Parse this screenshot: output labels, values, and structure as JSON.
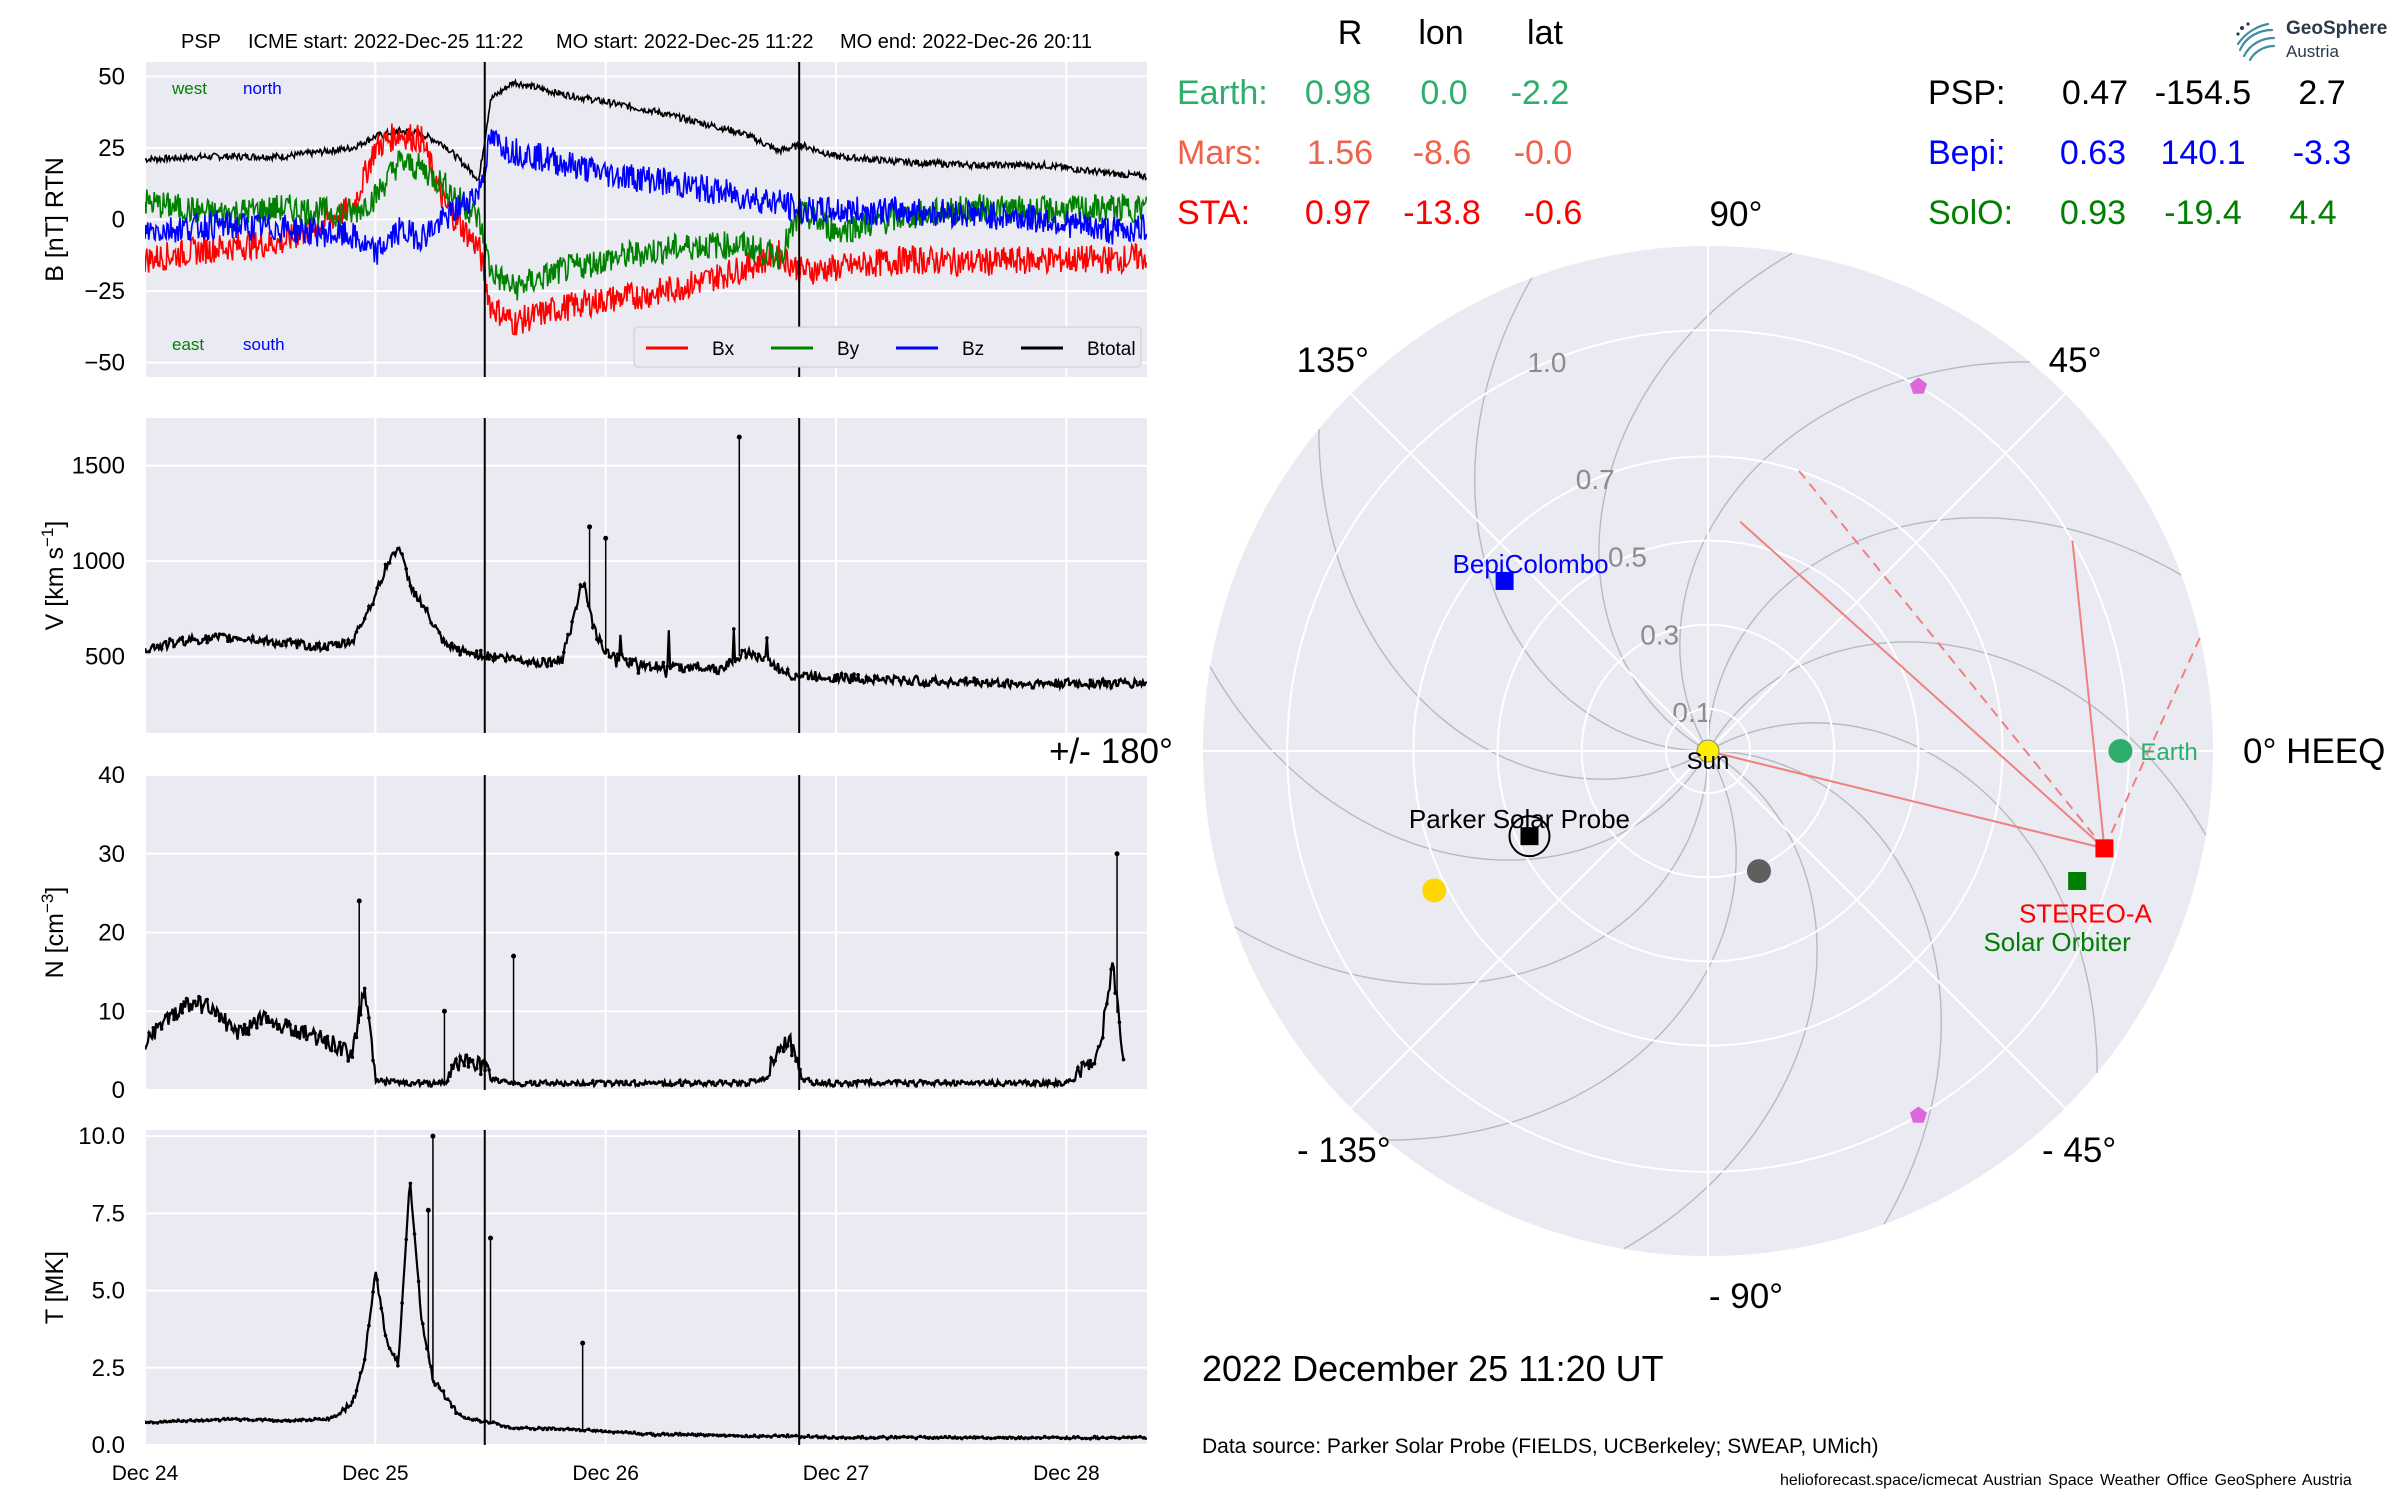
{
  "header": {
    "mission": "PSP",
    "icme_start": "ICME start: 2022-Dec-25 11:22",
    "mo_start": "MO start: 2022-Dec-25 11:22",
    "mo_end": "MO end: 2022-Dec-26 20:11"
  },
  "positions_table": {
    "columns": [
      "R",
      "lon",
      "lat"
    ],
    "rows": [
      {
        "name": "Earth:",
        "r": "0.98",
        "lon": "0.0",
        "lat": "-2.2",
        "color": "#2eae6b"
      },
      {
        "name": "Mars:",
        "r": "1.56",
        "lon": "-8.6",
        "lat": "-0.0",
        "color": "#f0634b"
      },
      {
        "name": "STA:",
        "r": "0.97",
        "lon": "-13.8",
        "lat": "-0.6",
        "color": "#ff0000"
      },
      {
        "name": "PSP:",
        "r": "0.47",
        "lon": "-154.5",
        "lat": "2.7",
        "color": "#000000"
      },
      {
        "name": "Bepi:",
        "r": "0.63",
        "lon": "140.1",
        "lat": "-3.3",
        "color": "#0000ff"
      },
      {
        "name": "SolO:",
        "r": "0.93",
        "lon": "-19.4",
        "lat": "4.4",
        "color": "#008000"
      }
    ]
  },
  "logo": {
    "name": "GeoSphere",
    "sub": "Austria"
  },
  "footer": {
    "date_title": "2022 December 25  11:20 UT",
    "data_source": "Data source: Parker Solar Probe (FIELDS, UCBerkeley; SWEAP, UMich)",
    "credits": "helioforecast.space/icmecat   Austrian Space Weather Office   GeoSphere Austria"
  },
  "chart_data": [
    {
      "type": "line",
      "panel": "magnetic_field",
      "ylabel": "B [nT] RTN",
      "ylim": [
        -55,
        55
      ],
      "yticks": [
        -50,
        -25,
        0,
        25,
        50
      ],
      "xlim_days": [
        0,
        4.35
      ],
      "xticks": [
        "Dec 24",
        "Dec 25",
        "Dec 26",
        "Dec 27",
        "Dec 28"
      ],
      "corner_labels": {
        "west": "west",
        "north": "north",
        "east": "east",
        "south": "south"
      },
      "event_lines_days": [
        1.475,
        2.84
      ],
      "legend": [
        "Bx",
        "By",
        "Bz",
        "Btotal"
      ],
      "series": [
        {
          "name": "Btotal",
          "color": "#000000",
          "x": [
            0,
            0.3,
            0.6,
            0.9,
            1.0,
            1.1,
            1.2,
            1.3,
            1.45,
            1.5,
            1.6,
            1.8,
            2.0,
            2.2,
            2.4,
            2.6,
            2.75,
            2.85,
            3.0,
            3.3,
            3.6,
            3.9,
            4.2,
            4.35
          ],
          "y": [
            21,
            22,
            22,
            25,
            29,
            31,
            30,
            26,
            14,
            42,
            48,
            44,
            41,
            38,
            34,
            30,
            24,
            26,
            22,
            20,
            19,
            19,
            16,
            15
          ]
        },
        {
          "name": "Bx",
          "color": "#ff0000",
          "x": [
            0,
            0.3,
            0.6,
            0.9,
            1.0,
            1.1,
            1.2,
            1.3,
            1.45,
            1.5,
            1.6,
            1.8,
            2.0,
            2.2,
            2.4,
            2.6,
            2.75,
            2.85,
            3.0,
            3.3,
            3.6,
            3.9,
            4.2,
            4.35
          ],
          "y": [
            -14,
            -10,
            -8,
            4,
            25,
            30,
            28,
            5,
            -10,
            -30,
            -36,
            -31,
            -28,
            -26,
            -22,
            -17,
            -12,
            -18,
            -17,
            -14,
            -15,
            -14,
            -14,
            -13
          ]
        },
        {
          "name": "By",
          "color": "#008000",
          "x": [
            0,
            0.3,
            0.6,
            0.9,
            1.0,
            1.1,
            1.2,
            1.3,
            1.45,
            1.5,
            1.6,
            1.8,
            2.0,
            2.2,
            2.4,
            2.6,
            2.75,
            2.85,
            3.0,
            3.3,
            3.6,
            3.9,
            4.2,
            4.35
          ],
          "y": [
            6,
            2,
            4,
            2,
            8,
            20,
            18,
            12,
            0,
            -18,
            -24,
            -18,
            -14,
            -11,
            -9,
            -9,
            -13,
            2,
            -4,
            1,
            4,
            3,
            4,
            4
          ]
        },
        {
          "name": "Bz",
          "color": "#0000ff",
          "x": [
            0,
            0.3,
            0.6,
            0.9,
            1.0,
            1.1,
            1.2,
            1.3,
            1.45,
            1.5,
            1.6,
            1.8,
            2.0,
            2.2,
            2.4,
            2.6,
            2.75,
            2.85,
            3.0,
            3.3,
            3.6,
            3.9,
            4.2,
            4.35
          ],
          "y": [
            -4,
            -2,
            -3,
            -6,
            -12,
            -4,
            -6,
            0,
            10,
            28,
            24,
            20,
            16,
            14,
            11,
            8,
            6,
            3,
            3,
            3,
            2,
            0,
            -4,
            -3
          ]
        }
      ]
    },
    {
      "type": "scatter",
      "panel": "speed",
      "ylabel": "V [km s^-1]",
      "ylim": [
        100,
        1750
      ],
      "yticks": [
        500,
        1000,
        1500
      ],
      "xlim_days": [
        0,
        4.35
      ],
      "xticks": [
        "Dec 24",
        "Dec 25",
        "Dec 26",
        "Dec 27",
        "Dec 28"
      ],
      "event_lines_days": [
        1.475,
        2.84
      ],
      "series": [
        {
          "name": "V",
          "color": "#000000",
          "x": [
            0,
            0.2,
            0.4,
            0.6,
            0.8,
            0.9,
            0.95,
            1.0,
            1.05,
            1.1,
            1.15,
            1.2,
            1.3,
            1.4,
            1.45,
            1.5,
            1.6,
            1.7,
            1.8,
            1.85,
            1.9,
            1.95,
            2.0,
            2.1,
            2.3,
            2.4,
            2.5,
            2.6,
            2.7,
            2.8,
            2.9,
            3.0,
            3.2,
            3.4,
            3.6,
            3.8,
            4.0,
            4.2,
            4.35
          ],
          "y": [
            540,
            590,
            600,
            570,
            550,
            580,
            700,
            820,
            980,
            1080,
            880,
            780,
            560,
            520,
            510,
            505,
            490,
            470,
            480,
            650,
            900,
            640,
            530,
            470,
            440,
            450,
            430,
            520,
            480,
            400,
            400,
            390,
            380,
            370,
            365,
            355,
            360,
            360,
            360
          ]
        }
      ],
      "outliers": [
        {
          "x": 2.58,
          "y": 1650
        },
        {
          "x": 1.93,
          "y": 1180
        },
        {
          "x": 2.0,
          "y": 1120
        }
      ]
    },
    {
      "type": "scatter",
      "panel": "density",
      "ylabel": "N [cm^-3]",
      "ylim": [
        0,
        40
      ],
      "yticks": [
        0,
        10,
        20,
        30,
        40
      ],
      "xlim_days": [
        0,
        4.35
      ],
      "xticks": [
        "Dec 24",
        "Dec 25",
        "Dec 26",
        "Dec 27",
        "Dec 28"
      ],
      "event_lines_days": [
        1.475,
        2.84
      ],
      "series": [
        {
          "name": "N",
          "color": "#000000",
          "x": [
            0,
            0.1,
            0.2,
            0.3,
            0.4,
            0.5,
            0.6,
            0.7,
            0.8,
            0.85,
            0.9,
            0.95,
            1.0,
            1.1,
            1.2,
            1.3,
            1.4,
            1.5,
            1.6,
            1.7,
            1.8,
            2.0,
            2.2,
            2.4,
            2.6,
            2.7,
            2.75,
            2.8,
            2.85,
            2.9,
            3.0,
            3.2,
            3.4,
            3.6,
            3.8,
            4.0,
            4.1,
            4.15,
            4.2,
            4.25
          ],
          "y": [
            5,
            8,
            10,
            9,
            6,
            8,
            7,
            6,
            5,
            4,
            3,
            12,
            1,
            0.5,
            0.5,
            0.5,
            3,
            1,
            0.5,
            0.5,
            0.5,
            0.5,
            0.5,
            0.5,
            0.5,
            1,
            4,
            5,
            1,
            0.5,
            0.5,
            0.5,
            0.5,
            0.5,
            0.5,
            0.5,
            2,
            5,
            15,
            2
          ]
        }
      ],
      "outliers": [
        {
          "x": 0.93,
          "y": 24
        },
        {
          "x": 1.3,
          "y": 10
        },
        {
          "x": 1.6,
          "y": 17
        },
        {
          "x": 4.22,
          "y": 30
        }
      ]
    },
    {
      "type": "scatter",
      "panel": "temperature",
      "ylabel": "T [MK]",
      "ylim": [
        0,
        10.2
      ],
      "yticks": [
        0.0,
        2.5,
        5.0,
        7.5,
        10.0
      ],
      "xlim_days": [
        0,
        4.35
      ],
      "xticks": [
        "Dec 24",
        "Dec 25",
        "Dec 26",
        "Dec 27",
        "Dec 28"
      ],
      "event_lines_days": [
        1.475,
        2.84
      ],
      "series": [
        {
          "name": "T",
          "color": "#000000",
          "x": [
            0,
            0.2,
            0.4,
            0.6,
            0.8,
            0.9,
            0.95,
            1.0,
            1.05,
            1.1,
            1.15,
            1.2,
            1.25,
            1.3,
            1.35,
            1.4,
            1.5,
            1.6,
            1.8,
            2.0,
            2.2,
            2.4,
            2.6,
            2.8,
            3.0,
            3.2,
            3.4,
            3.6,
            3.8,
            4.0,
            4.2,
            4.35
          ],
          "y": [
            0.7,
            0.75,
            0.8,
            0.75,
            0.8,
            1.2,
            2.5,
            5.5,
            3.2,
            2.5,
            8.5,
            4.0,
            2.0,
            1.5,
            1.0,
            0.8,
            0.7,
            0.5,
            0.5,
            0.4,
            0.3,
            0.3,
            0.25,
            0.25,
            0.2,
            0.2,
            0.2,
            0.2,
            0.2,
            0.2,
            0.2,
            0.2
          ]
        }
      ],
      "outliers": [
        {
          "x": 1.25,
          "y": 10.0
        },
        {
          "x": 1.23,
          "y": 7.6
        },
        {
          "x": 1.5,
          "y": 6.7
        },
        {
          "x": 1.9,
          "y": 3.3
        }
      ]
    },
    {
      "type": "polar",
      "panel": "spacecraft_positions",
      "frame": "HEEQ",
      "angle_labels": {
        "0": "0° HEEQ",
        "45": "45°",
        "90": "90°",
        "135": "135°",
        "180": "+/- 180°",
        "-135": "- 135°",
        "-90": "- 90°",
        "-45": "- 45°"
      },
      "r_max": 1.2,
      "radial_ticks": [
        0.1,
        0.3,
        0.5,
        0.7,
        1.0
      ],
      "radial_tick_labels": [
        "0.1",
        "0.3",
        "0.5",
        "0.7",
        "1.0"
      ],
      "bodies": [
        {
          "name": "Sun",
          "label": "Sun",
          "r": 0.0,
          "lon": 0,
          "color": "#ffee00",
          "marker": "circle"
        },
        {
          "name": "Earth",
          "label": "Earth",
          "r": 0.98,
          "lon": 0.0,
          "color": "#2eae6b",
          "marker": "circle"
        },
        {
          "name": "STEREO-A",
          "label": "STEREO-A",
          "r": 0.97,
          "lon": -13.8,
          "color": "#ff0000",
          "marker": "square"
        },
        {
          "name": "Solar Orbiter",
          "label": "Solar Orbiter",
          "r": 0.93,
          "lon": -19.4,
          "color": "#008000",
          "marker": "square"
        },
        {
          "name": "BepiColombo",
          "label": "BepiColombo",
          "r": 0.63,
          "lon": 140.1,
          "color": "#0000ff",
          "marker": "square"
        },
        {
          "name": "Parker Solar Probe",
          "label": "Parker Solar Probe",
          "r": 0.47,
          "lon": -154.5,
          "color": "#000000",
          "marker": "square"
        },
        {
          "name": "Mercury",
          "label": "",
          "r": 0.31,
          "lon": -67,
          "color": "#5f5f5f",
          "marker": "circle"
        },
        {
          "name": "Venus",
          "label": "",
          "r": 0.73,
          "lon": -153,
          "color": "#ffd700",
          "marker": "circle"
        },
        {
          "name": "L4",
          "label": "",
          "r": 1.0,
          "lon": 60,
          "color": "#dd66dd",
          "marker": "pentagon"
        },
        {
          "name": "L5",
          "label": "",
          "r": 1.0,
          "lon": -60,
          "color": "#dd66dd",
          "marker": "pentagon"
        }
      ]
    }
  ]
}
